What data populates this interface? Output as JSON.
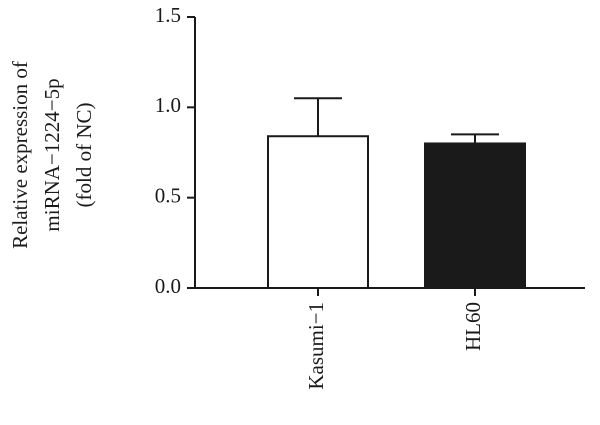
{
  "chart_data": {
    "type": "bar",
    "y_label": [
      "Relative expression of",
      "miRNA−1224−5p",
      "(fold of NC)"
    ],
    "categories": [
      "Kasumi−1",
      "HL60"
    ],
    "values": [
      0.84,
      0.8
    ],
    "errors": [
      0.21,
      0.05
    ],
    "colors": [
      "#ffffff",
      "#1a1a1a"
    ],
    "ylim": [
      0,
      1.5
    ],
    "yticks": [
      {
        "value": 0,
        "label": "0.0"
      },
      0.5,
      {
        "value": 1,
        "label": "1.0"
      },
      {
        "value": 1.5,
        "label": "1.5"
      }
    ]
  }
}
